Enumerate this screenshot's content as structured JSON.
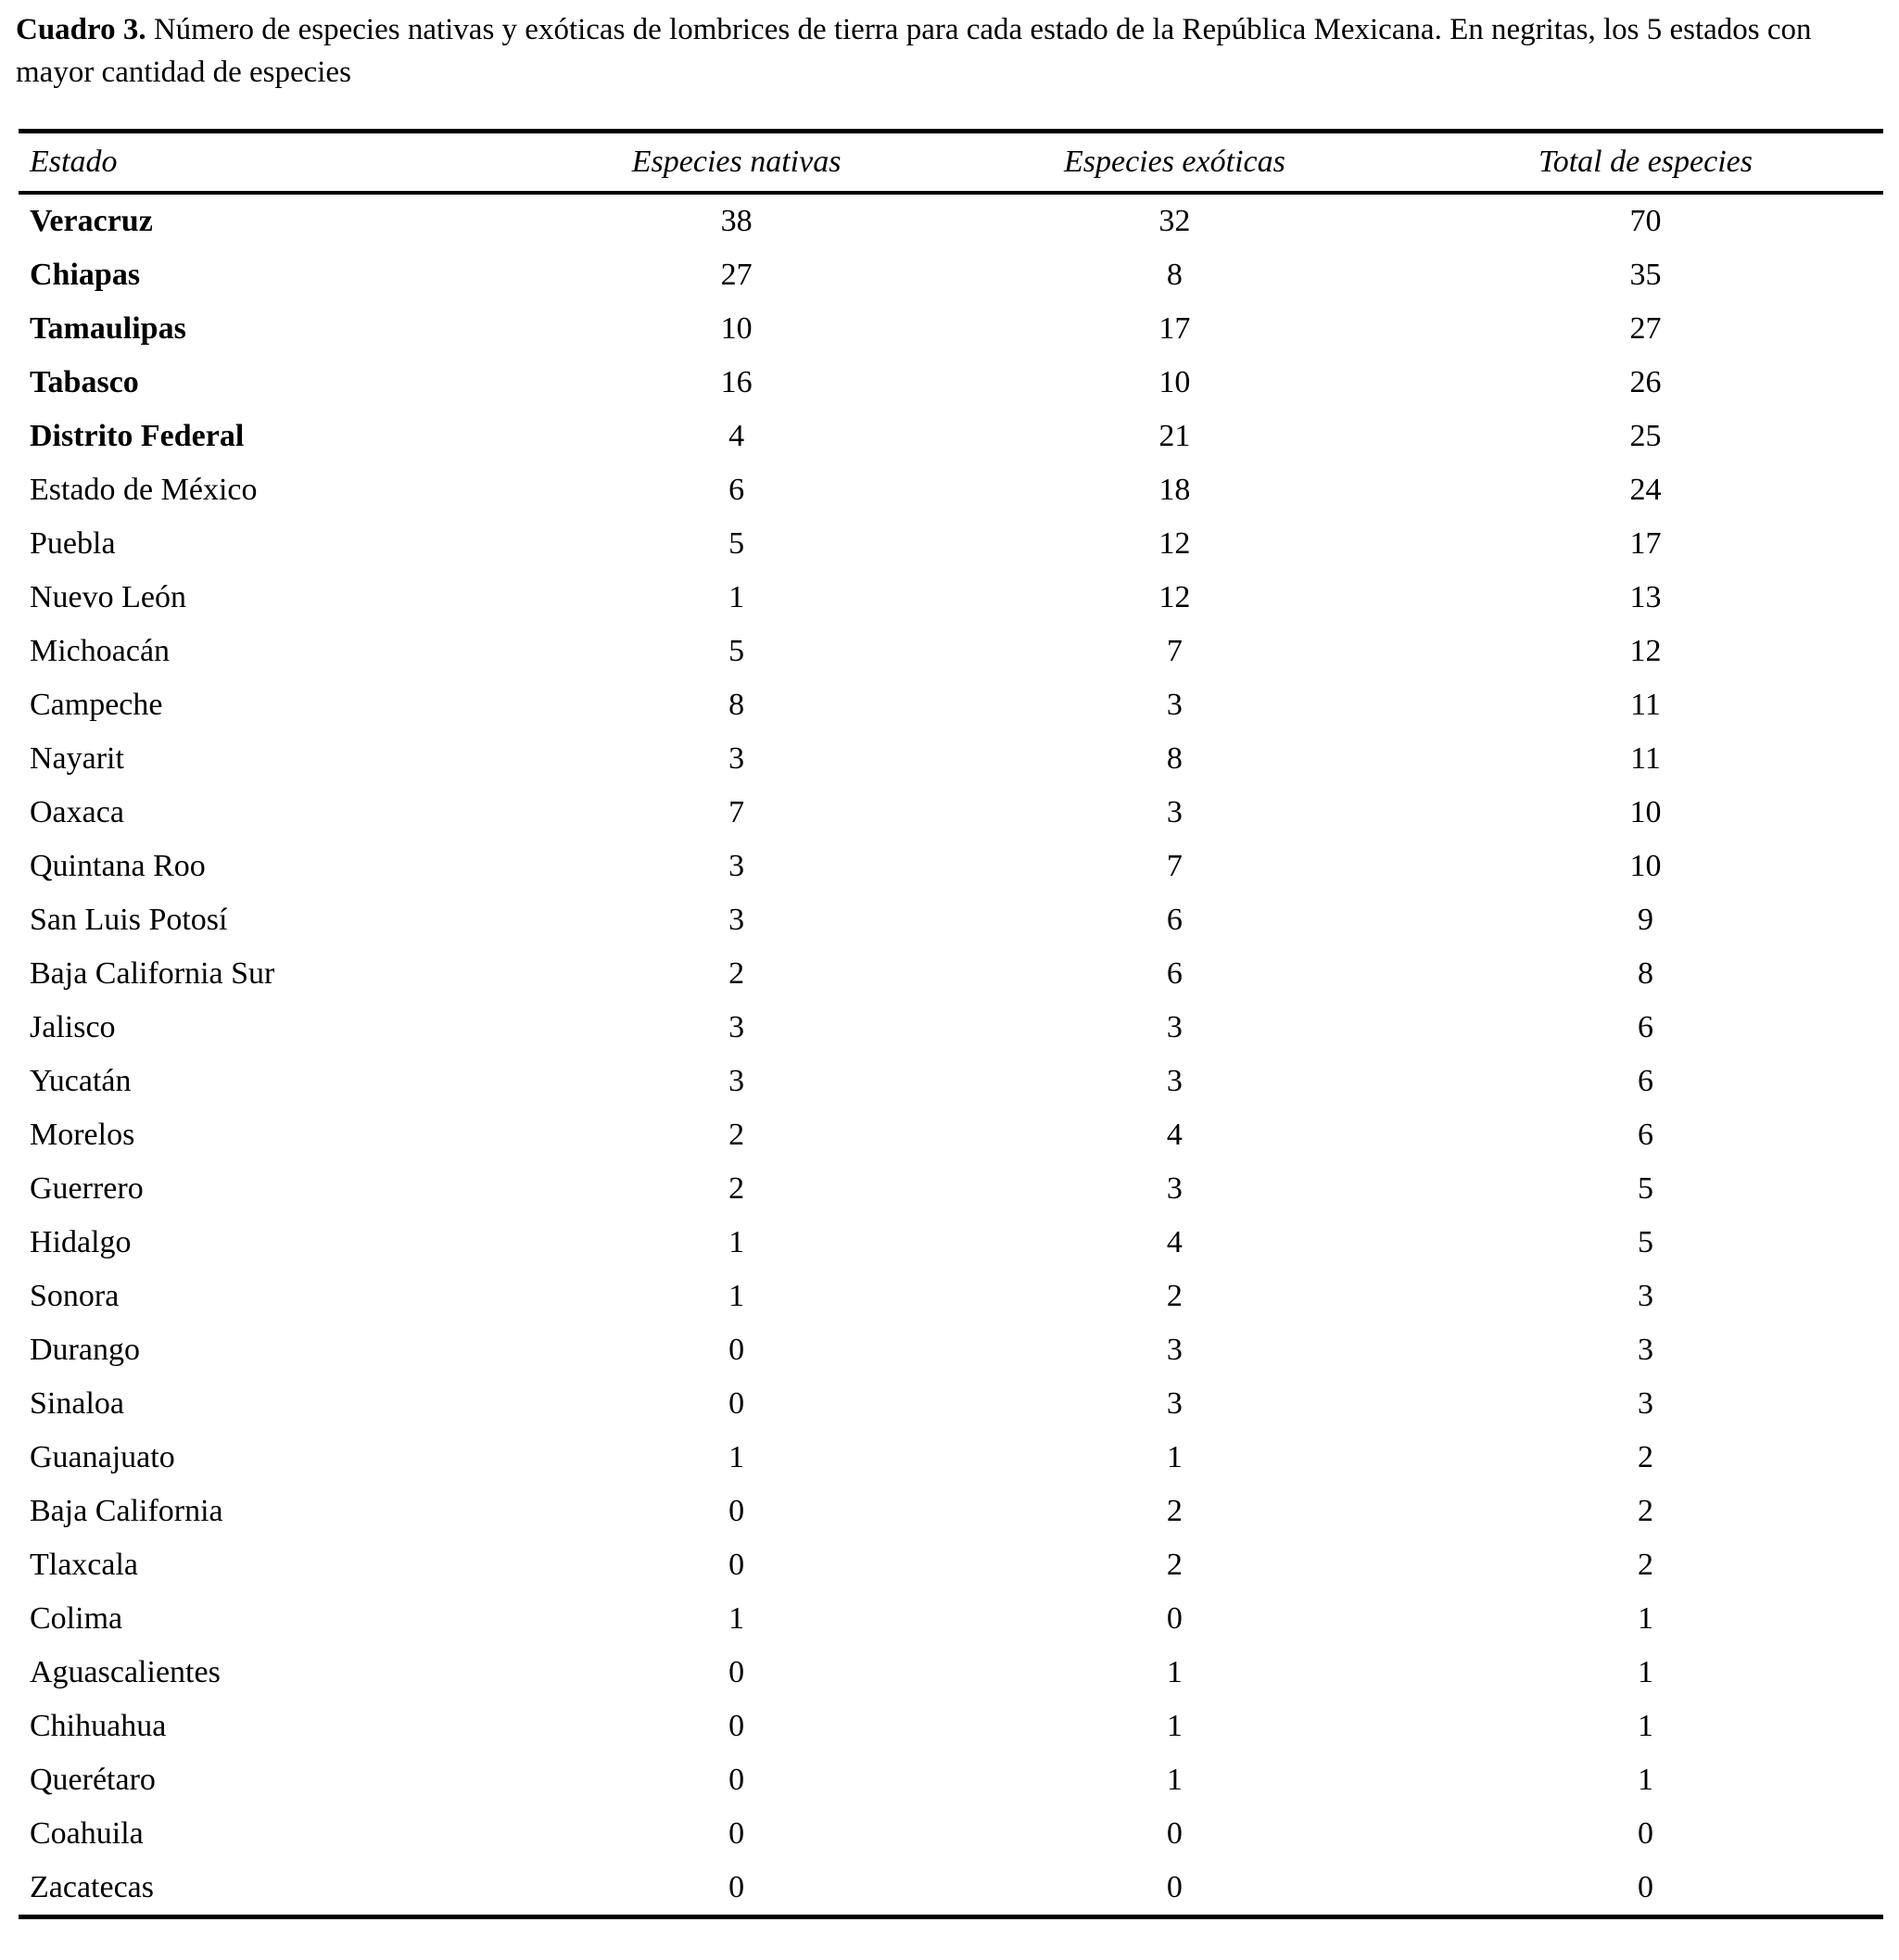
{
  "caption": {
    "label": "Cuadro 3.",
    "text": "Número de especies nativas y exóticas de lombrices de tierra para cada estado de la República Mexicana. En negritas, los 5 estados con mayor cantidad de especies"
  },
  "colors": {
    "text": "#000000",
    "background": "#ffffff"
  },
  "table": {
    "columns": [
      "Estado",
      "Especies nativas",
      "Especies exóticas",
      "Total de especies"
    ],
    "rows": [
      {
        "estado": "Veracruz",
        "nativas": 38,
        "exoticas": 32,
        "total": 70,
        "bold": true
      },
      {
        "estado": "Chiapas",
        "nativas": 27,
        "exoticas": 8,
        "total": 35,
        "bold": true
      },
      {
        "estado": "Tamaulipas",
        "nativas": 10,
        "exoticas": 17,
        "total": 27,
        "bold": true
      },
      {
        "estado": "Tabasco",
        "nativas": 16,
        "exoticas": 10,
        "total": 26,
        "bold": true
      },
      {
        "estado": "Distrito Federal",
        "nativas": 4,
        "exoticas": 21,
        "total": 25,
        "bold": true
      },
      {
        "estado": "Estado de México",
        "nativas": 6,
        "exoticas": 18,
        "total": 24,
        "bold": false
      },
      {
        "estado": "Puebla",
        "nativas": 5,
        "exoticas": 12,
        "total": 17,
        "bold": false
      },
      {
        "estado": "Nuevo León",
        "nativas": 1,
        "exoticas": 12,
        "total": 13,
        "bold": false
      },
      {
        "estado": "Michoacán",
        "nativas": 5,
        "exoticas": 7,
        "total": 12,
        "bold": false
      },
      {
        "estado": "Campeche",
        "nativas": 8,
        "exoticas": 3,
        "total": 11,
        "bold": false
      },
      {
        "estado": "Nayarit",
        "nativas": 3,
        "exoticas": 8,
        "total": 11,
        "bold": false
      },
      {
        "estado": "Oaxaca",
        "nativas": 7,
        "exoticas": 3,
        "total": 10,
        "bold": false
      },
      {
        "estado": "Quintana Roo",
        "nativas": 3,
        "exoticas": 7,
        "total": 10,
        "bold": false
      },
      {
        "estado": "San Luis Potosí",
        "nativas": 3,
        "exoticas": 6,
        "total": 9,
        "bold": false
      },
      {
        "estado": "Baja California Sur",
        "nativas": 2,
        "exoticas": 6,
        "total": 8,
        "bold": false
      },
      {
        "estado": "Jalisco",
        "nativas": 3,
        "exoticas": 3,
        "total": 6,
        "bold": false
      },
      {
        "estado": "Yucatán",
        "nativas": 3,
        "exoticas": 3,
        "total": 6,
        "bold": false
      },
      {
        "estado": "Morelos",
        "nativas": 2,
        "exoticas": 4,
        "total": 6,
        "bold": false
      },
      {
        "estado": "Guerrero",
        "nativas": 2,
        "exoticas": 3,
        "total": 5,
        "bold": false
      },
      {
        "estado": "Hidalgo",
        "nativas": 1,
        "exoticas": 4,
        "total": 5,
        "bold": false
      },
      {
        "estado": "Sonora",
        "nativas": 1,
        "exoticas": 2,
        "total": 3,
        "bold": false
      },
      {
        "estado": "Durango",
        "nativas": 0,
        "exoticas": 3,
        "total": 3,
        "bold": false
      },
      {
        "estado": "Sinaloa",
        "nativas": 0,
        "exoticas": 3,
        "total": 3,
        "bold": false
      },
      {
        "estado": "Guanajuato",
        "nativas": 1,
        "exoticas": 1,
        "total": 2,
        "bold": false
      },
      {
        "estado": "Baja California",
        "nativas": 0,
        "exoticas": 2,
        "total": 2,
        "bold": false
      },
      {
        "estado": "Tlaxcala",
        "nativas": 0,
        "exoticas": 2,
        "total": 2,
        "bold": false
      },
      {
        "estado": "Colima",
        "nativas": 1,
        "exoticas": 0,
        "total": 1,
        "bold": false
      },
      {
        "estado": "Aguascalientes",
        "nativas": 0,
        "exoticas": 1,
        "total": 1,
        "bold": false
      },
      {
        "estado": "Chihuahua",
        "nativas": 0,
        "exoticas": 1,
        "total": 1,
        "bold": false
      },
      {
        "estado": "Querétaro",
        "nativas": 0,
        "exoticas": 1,
        "total": 1,
        "bold": false
      },
      {
        "estado": "Coahuila",
        "nativas": 0,
        "exoticas": 0,
        "total": 0,
        "bold": false
      },
      {
        "estado": "Zacatecas",
        "nativas": 0,
        "exoticas": 0,
        "total": 0,
        "bold": false
      }
    ]
  }
}
